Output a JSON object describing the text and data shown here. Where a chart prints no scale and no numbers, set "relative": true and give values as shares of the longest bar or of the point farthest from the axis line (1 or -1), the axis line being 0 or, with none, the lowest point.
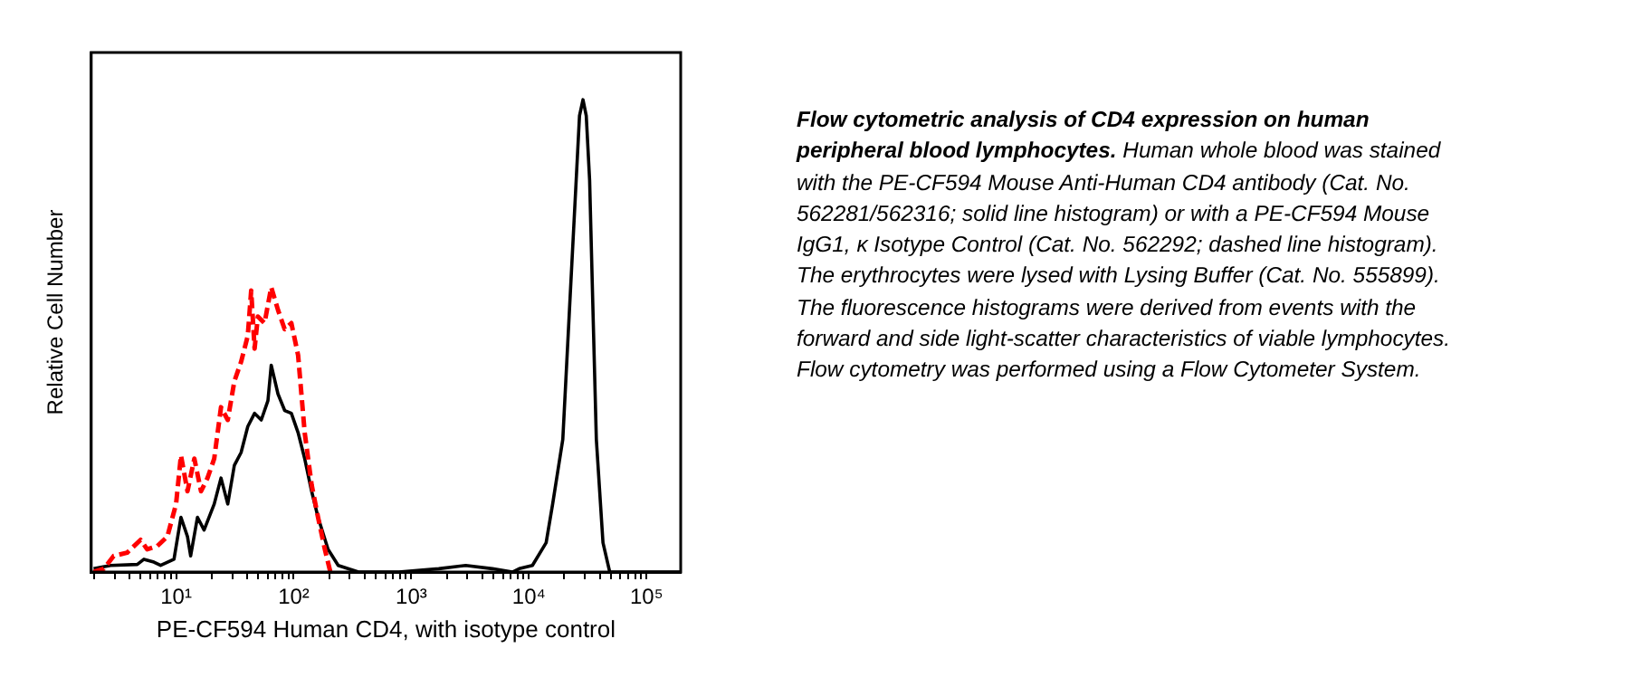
{
  "chart_data": {
    "type": "line",
    "relative": true,
    "log": "x",
    "xlabel": "PE-CF594 Human CD4, with isotype control",
    "ylabel": "Relative Cell Number",
    "xlim": [
      1.9,
      195000
    ],
    "xticks": [
      {
        "value": 2,
        "label": null
      },
      {
        "value": 3,
        "label": null
      },
      {
        "value": 4,
        "label": null
      },
      {
        "value": 5,
        "label": null
      },
      {
        "value": 6,
        "label": null
      },
      {
        "value": 7,
        "label": null
      },
      {
        "value": 8,
        "label": null
      },
      {
        "value": 9,
        "label": null
      },
      {
        "value": 10,
        "label": "10¹"
      },
      {
        "value": 20,
        "label": null
      },
      {
        "value": 30,
        "label": null
      },
      {
        "value": 40,
        "label": null
      },
      {
        "value": 50,
        "label": null
      },
      {
        "value": 60,
        "label": null
      },
      {
        "value": 70,
        "label": null
      },
      {
        "value": 80,
        "label": null
      },
      {
        "value": 90,
        "label": null
      },
      {
        "value": 100,
        "label": "10²"
      },
      {
        "value": 200,
        "label": null
      },
      {
        "value": 300,
        "label": null
      },
      {
        "value": 400,
        "label": null
      },
      {
        "value": 500,
        "label": null
      },
      {
        "value": 600,
        "label": null
      },
      {
        "value": 700,
        "label": null
      },
      {
        "value": 800,
        "label": null
      },
      {
        "value": 900,
        "label": null
      },
      {
        "value": 1000,
        "label": "10³"
      },
      {
        "value": 2000,
        "label": null
      },
      {
        "value": 3000,
        "label": null
      },
      {
        "value": 4000,
        "label": null
      },
      {
        "value": 5000,
        "label": null
      },
      {
        "value": 6000,
        "label": null
      },
      {
        "value": 7000,
        "label": null
      },
      {
        "value": 8000,
        "label": null
      },
      {
        "value": 9000,
        "label": null
      },
      {
        "value": 10000,
        "label": "10⁴"
      },
      {
        "value": 20000,
        "label": null
      },
      {
        "value": 30000,
        "label": null
      },
      {
        "value": 40000,
        "label": null
      },
      {
        "value": 50000,
        "label": null
      },
      {
        "value": 60000,
        "label": null
      },
      {
        "value": 70000,
        "label": null
      },
      {
        "value": 80000,
        "label": null
      },
      {
        "value": 90000,
        "label": null
      },
      {
        "value": 100000,
        "label": "10⁵"
      }
    ],
    "legend": false,
    "marker": "none",
    "grid": false,
    "series": [
      {
        "color": "#ff0000",
        "line_style": "dashed",
        "x": [
          1.99,
          2.43,
          2.95,
          3.84,
          4.99,
          5.69,
          6.92,
          8.43,
          10,
          11,
          12.5,
          14.3,
          16.3,
          18.5,
          21.1,
          24.1,
          27.5,
          31.3,
          35.7,
          40.7,
          43.5,
          46.5,
          49.6,
          56.5,
          64.4,
          73.5,
          83.8,
          95.5,
          109,
          124,
          142,
          161,
          184,
          205
        ],
        "values": [
          0,
          0.007,
          0.034,
          0.041,
          0.068,
          0.048,
          0.055,
          0.075,
          0.144,
          0.247,
          0.171,
          0.24,
          0.171,
          0.199,
          0.24,
          0.349,
          0.322,
          0.404,
          0.445,
          0.5,
          0.596,
          0.473,
          0.541,
          0.527,
          0.603,
          0.555,
          0.514,
          0.527,
          0.459,
          0.295,
          0.185,
          0.116,
          0.048,
          0
        ]
      },
      {
        "color": "#000000",
        "line_style": "solid",
        "x": [
          1.99,
          2.77,
          4.68,
          5.33,
          6.48,
          7.39,
          9.6,
          11,
          12.5,
          13.3,
          15.2,
          17.3,
          21.1,
          24.1,
          27.5,
          31.3,
          35.7,
          40.7,
          46.5,
          53,
          60.4,
          64.4,
          73.5,
          83.8,
          95.5,
          109,
          124,
          142,
          161,
          196,
          239,
          355,
          780,
          1710,
          2900,
          4890,
          7240,
          8260,
          10700,
          14000,
          15900,
          19400,
          22100,
          25200,
          26900,
          28800,
          30700,
          32800,
          35000,
          37400,
          42600,
          48600,
          55500,
          193000
        ],
        "values": [
          0.007,
          0.014,
          0.016,
          0.027,
          0.021,
          0.014,
          0.027,
          0.116,
          0.075,
          0.034,
          0.116,
          0.089,
          0.144,
          0.199,
          0.144,
          0.226,
          0.253,
          0.308,
          0.336,
          0.322,
          0.363,
          0.438,
          0.377,
          0.342,
          0.336,
          0.295,
          0.24,
          0.171,
          0.116,
          0.048,
          0.014,
          0,
          0,
          0.007,
          0.014,
          0.007,
          0,
          0.007,
          0.014,
          0.062,
          0.144,
          0.281,
          0.555,
          0.829,
          0.966,
          1,
          0.966,
          0.829,
          0.555,
          0.281,
          0.062,
          0,
          0,
          0
        ]
      }
    ],
    "annotations": [
      "Flow cytometric analysis of CD4 expression on human peripheral blood lymphocytes.",
      "Human whole blood was stained with the PE-CF594 Mouse Anti-Human CD4 antibody (Cat. No. 562281/562316; solid line histogram) or with a PE-CF594 Mouse IgG1, κ Isotype Control (Cat. No. 562292; dashed line histogram). The erythrocytes were lysed with Lysing Buffer (Cat. No. 555899). The fluorescence histograms were derived from events with the forward and side light-scatter characteristics of viable lymphocytes. Flow cytometry was performed using a Flow Cytometer System."
    ]
  }
}
